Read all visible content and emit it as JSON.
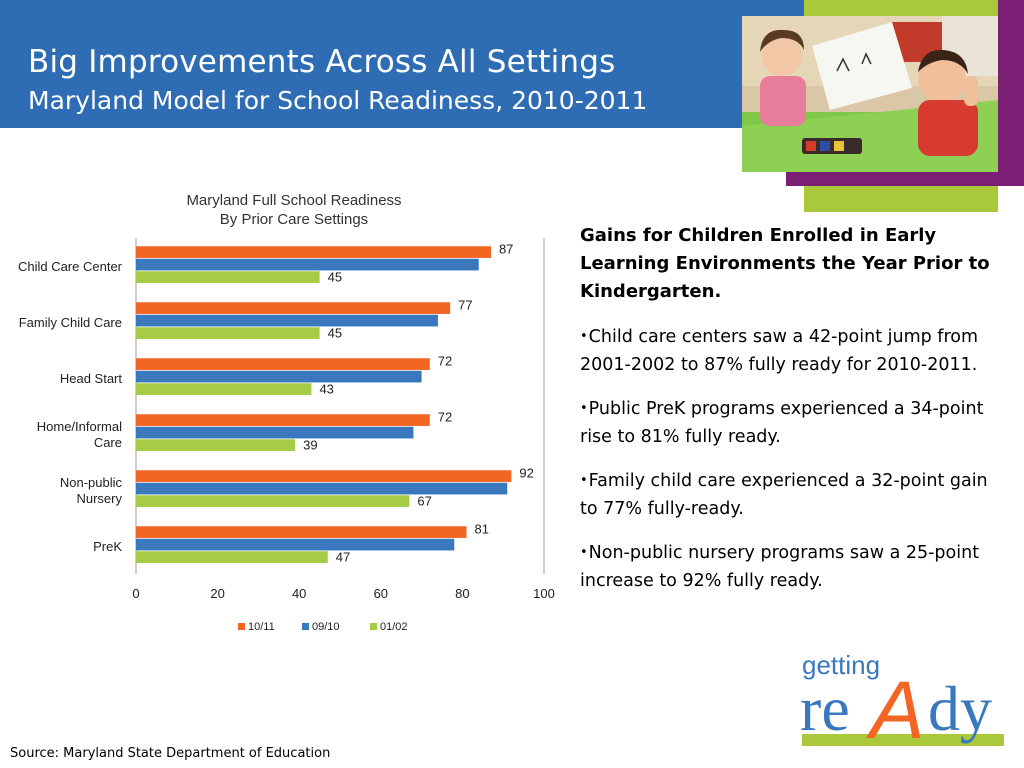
{
  "header": {
    "title": "Big Improvements Across All Settings",
    "subtitle": "Maryland Model for School Readiness, 2010-2011"
  },
  "colors": {
    "header_blue": "#2e6db4",
    "series_1011": "#f26522",
    "series_0910": "#3a78be",
    "series_0102": "#a6cc45",
    "accent_purple": "#7a1f74",
    "accent_green": "#a9c93b"
  },
  "chart_data": {
    "type": "bar",
    "orientation": "horizontal",
    "title": "Maryland Full School Readiness",
    "subtitle": "By Prior Care Settings",
    "categories": [
      "Child Care Center",
      "Family Child Care",
      "Head Start",
      "Home/Informal Care",
      "Non-public Nursery",
      "PreK"
    ],
    "category_lines": [
      [
        "Child Care Center"
      ],
      [
        "Family Child Care"
      ],
      [
        "Head Start"
      ],
      [
        "Home/Informal",
        "Care"
      ],
      [
        "Non-public",
        "Nursery"
      ],
      [
        "PreK"
      ]
    ],
    "series": [
      {
        "name": "10/11",
        "color": "#f26522",
        "values": [
          87,
          77,
          72,
          72,
          92,
          81
        ],
        "labeled": true
      },
      {
        "name": "09/10",
        "color": "#3a78be",
        "values": [
          84,
          74,
          70,
          68,
          91,
          78
        ],
        "labeled": false
      },
      {
        "name": "01/02",
        "color": "#a6cc45",
        "values": [
          45,
          45,
          43,
          39,
          67,
          47
        ],
        "labeled": true
      }
    ],
    "xlim": [
      0,
      100
    ],
    "xticks": [
      0,
      20,
      40,
      60,
      80,
      100
    ],
    "grid": false,
    "legend_position": "bottom"
  },
  "panel": {
    "heading": "Gains for Children Enrolled in Early Learning Environments the Year Prior to Kindergarten.",
    "bullet_symbol": "•",
    "bullets": [
      "Child care centers saw a 42-point jump from 2001-2002 to 87% fully ready for 2010-2011.",
      "Public PreK programs experienced a 34-point rise to 81% fully ready.",
      "Family child care experienced a 32-point gain to 77% fully-ready.",
      "Non-public nursery programs saw a 25-point increase to 92% fully ready."
    ]
  },
  "footer": {
    "source": "Source: Maryland State Department of Education"
  },
  "logo": {
    "line1": "getting",
    "line2_a": "re",
    "line2_b": "A",
    "line2_c": "dy"
  },
  "photo": {
    "icon": "children-classroom-photo"
  }
}
